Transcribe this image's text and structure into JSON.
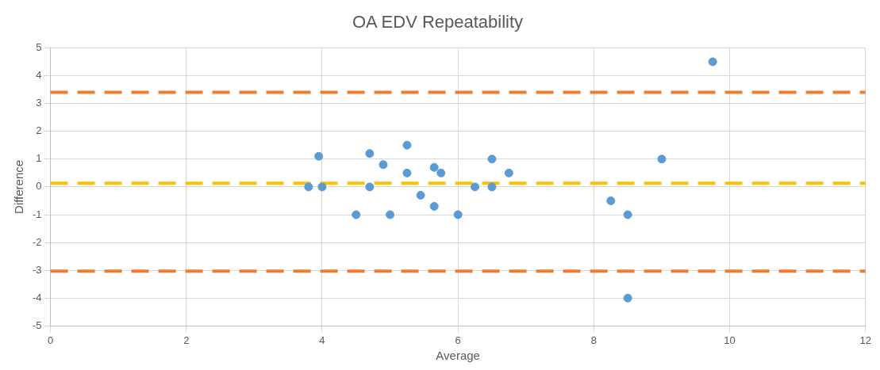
{
  "chart_data": {
    "type": "scatter",
    "title": "OA EDV Repeatability",
    "xlabel": "Average",
    "ylabel": "Difference",
    "x": [
      3.8,
      3.95,
      4.0,
      4.5,
      4.7,
      4.7,
      4.9,
      5.0,
      5.25,
      5.25,
      5.45,
      5.65,
      5.65,
      5.75,
      6.0,
      6.25,
      6.5,
      6.5,
      6.75,
      8.25,
      8.5,
      8.5,
      9.0,
      9.75
    ],
    "values": [
      0,
      1.1,
      0,
      -1,
      1.2,
      0,
      0.8,
      -1,
      1.5,
      0.5,
      -0.3,
      0.7,
      -0.7,
      0.5,
      -1,
      0,
      1,
      0,
      0.5,
      -0.5,
      -1,
      -4,
      1,
      4.5
    ],
    "color": "#5b9bd5",
    "marker": "circle",
    "xlim": [
      0,
      12
    ],
    "xticks": [
      0,
      2,
      4,
      6,
      8,
      10,
      12
    ],
    "ylim": [
      -5,
      5
    ],
    "yticks": [
      -5,
      -4,
      -3,
      -2,
      -1,
      0,
      1,
      2,
      3,
      4,
      5
    ],
    "ref_lines": [
      {
        "axis": "y",
        "value": 3.4,
        "color": "#ed7d31",
        "line_style": "dashed"
      },
      {
        "axis": "y",
        "value": 0.13,
        "color": "#ffc000",
        "line_style": "dashed"
      },
      {
        "axis": "y",
        "value": -3.03,
        "color": "#ed7d31",
        "line_style": "dashed"
      }
    ],
    "grid": true,
    "legend": false
  }
}
